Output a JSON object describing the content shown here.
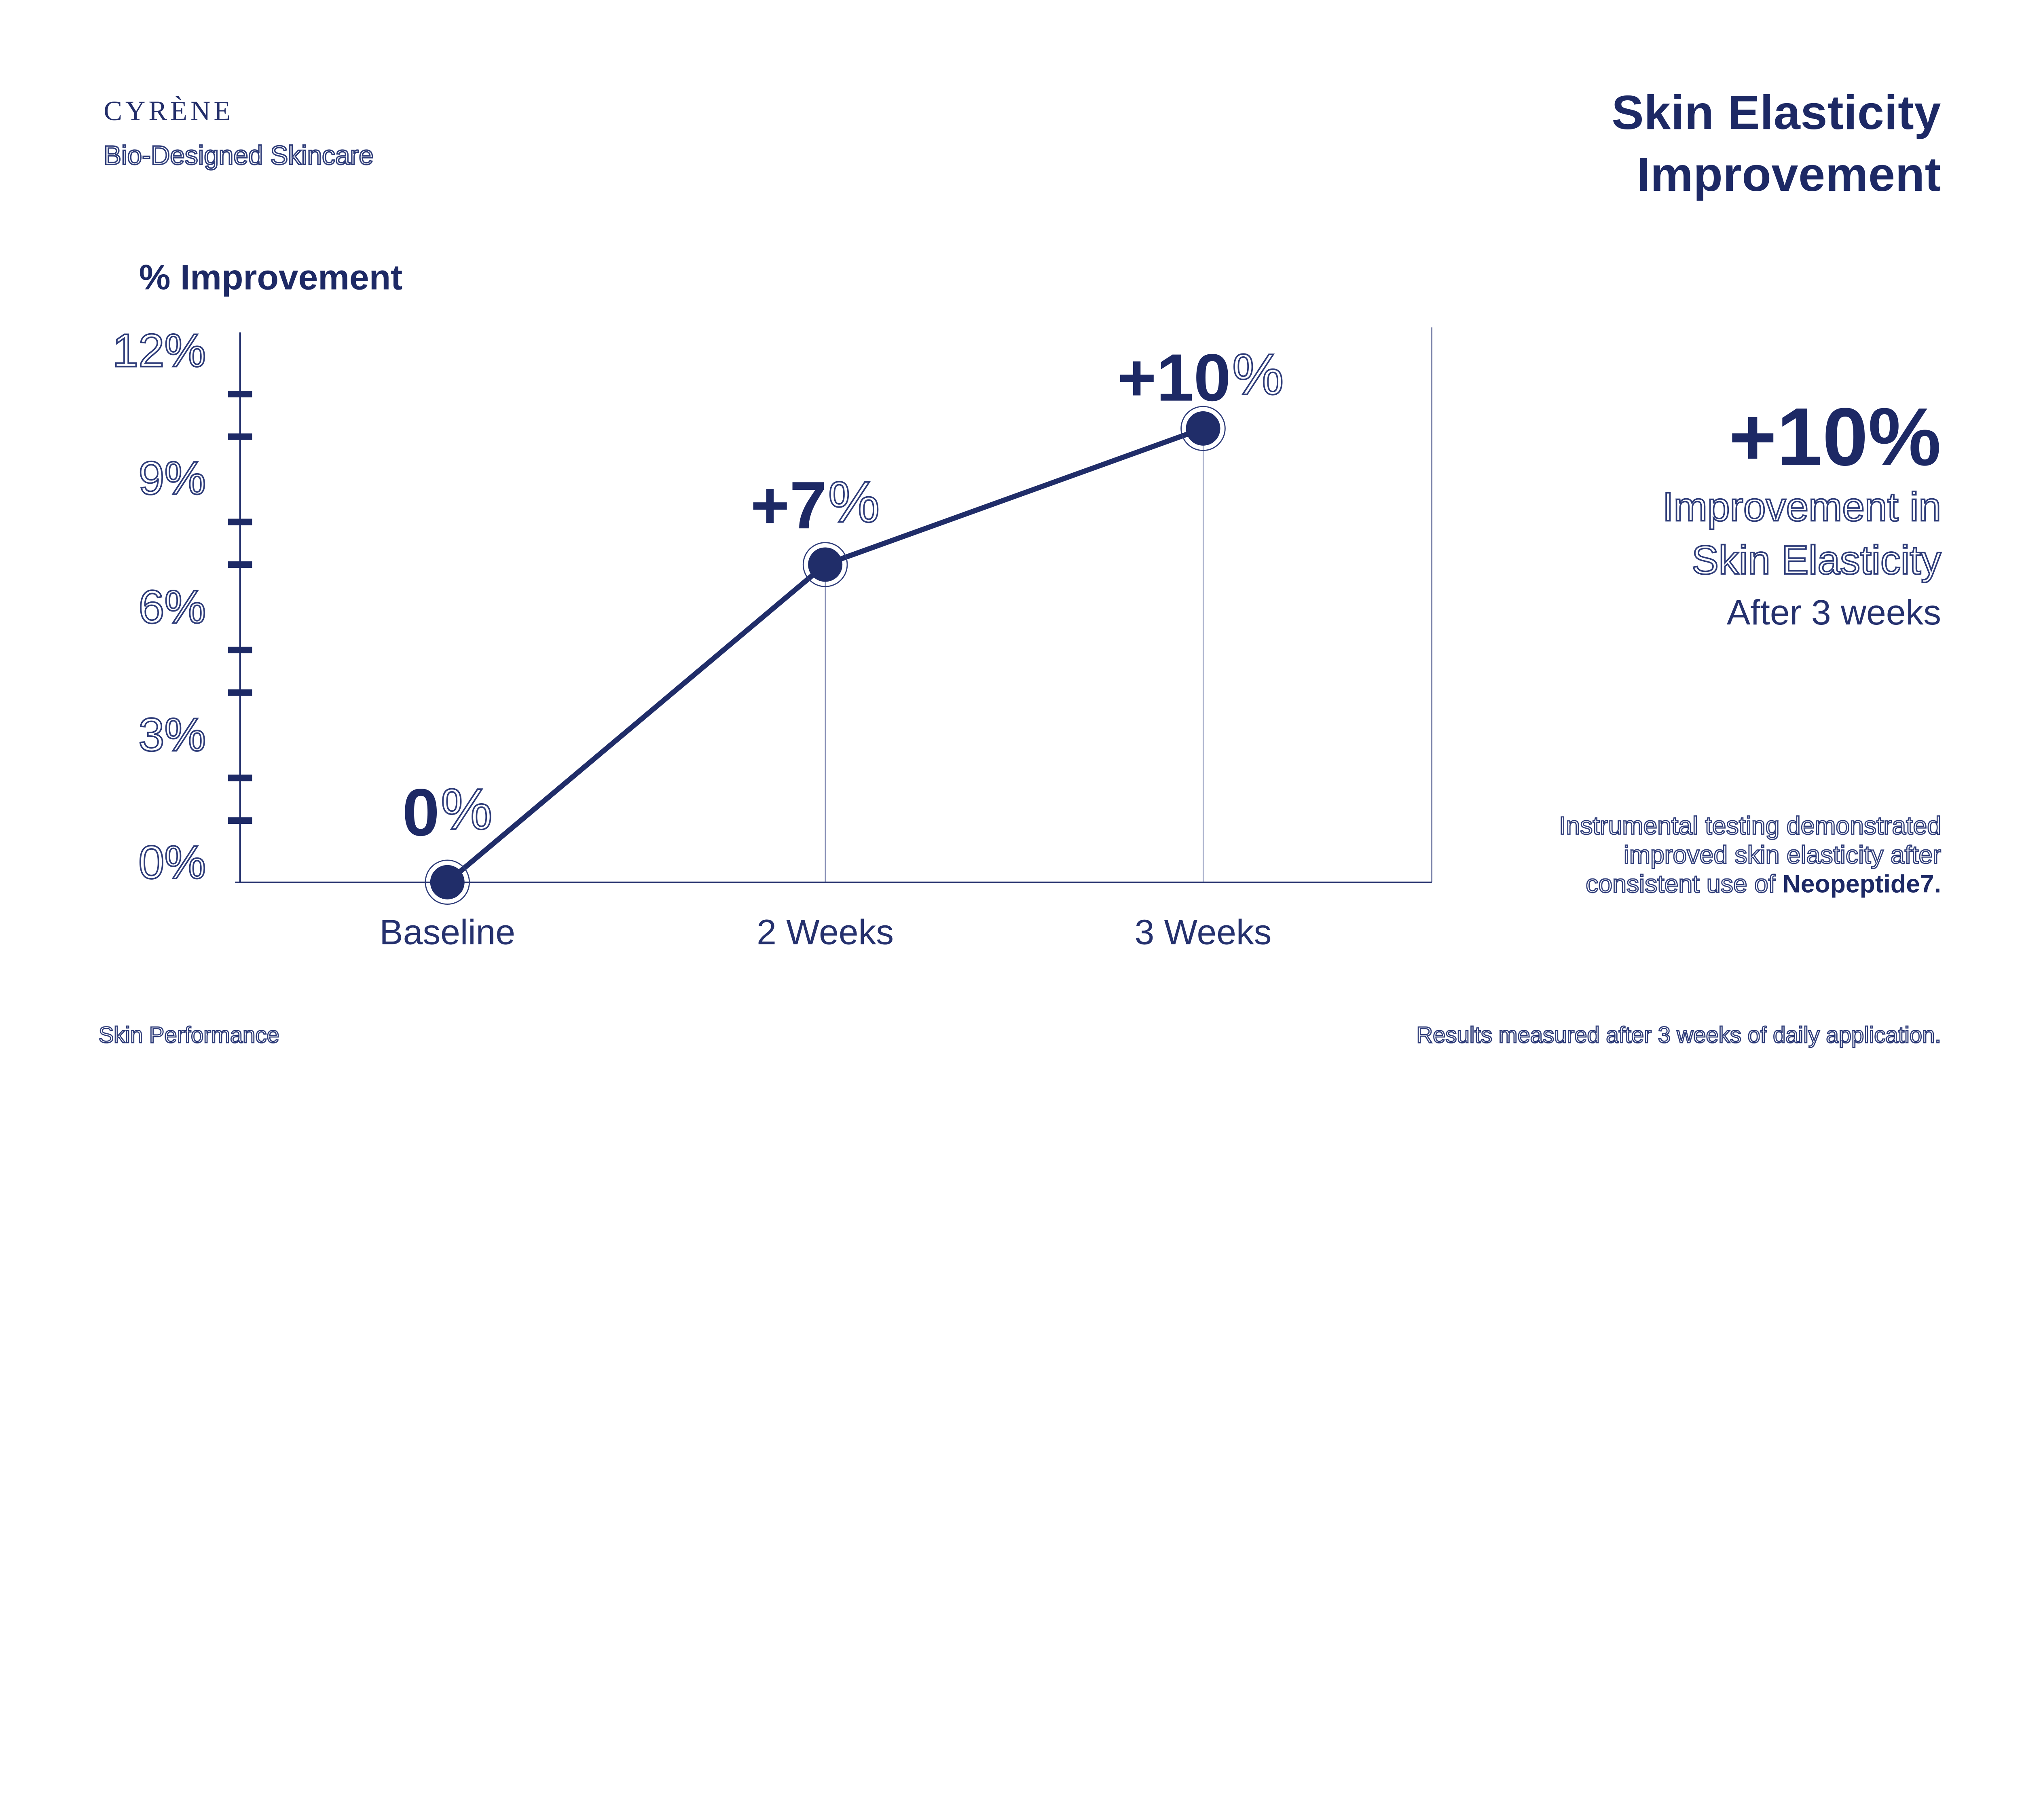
{
  "brand": {
    "logo": "CYRÈNE",
    "tagline": "Bio-Designed Skincare"
  },
  "header": {
    "title": [
      "Skin Elasticity",
      "Improvement"
    ]
  },
  "chart_data": {
    "type": "line",
    "title": "% Improvement",
    "categories": [
      "Baseline",
      "2 Weeks",
      "3 Weeks"
    ],
    "values": [
      0,
      7,
      10
    ],
    "point_labels": [
      {
        "num": "0",
        "suffix": "%"
      },
      {
        "num": "+7",
        "suffix": "%"
      },
      {
        "num": "+10",
        "suffix": "%"
      }
    ],
    "ylabel": "% Improvement",
    "xlabel": "",
    "ylim": [
      0,
      12
    ],
    "ytick_values": [
      0,
      3,
      6,
      9,
      12
    ],
    "ytick_labels": [
      "0%",
      "3%",
      "6%",
      "9%",
      "12%"
    ],
    "minor_tick_values": [
      1,
      2,
      4,
      5,
      7,
      8,
      10,
      11
    ],
    "grid": false,
    "legend_position": "none",
    "marker": "filled-circle-with-outer-ring",
    "drop_lines": true,
    "line_color": "#202d69"
  },
  "highlight": {
    "headline": "+10%",
    "sub": [
      "Improvement in",
      "Skin Elasticity"
    ],
    "caption": "After 3 weeks"
  },
  "footnote": {
    "lines": [
      "Instrumental testing demonstrated",
      "improved skin elasticity after"
    ],
    "last_line_prefix": "consistent use of ",
    "last_line_emphasis": "Neopeptide7."
  },
  "footer": {
    "left": "Skin Performance",
    "right": "Results measured after 3 weeks of daily application."
  },
  "colors": {
    "navy": "#1d2965",
    "ink": "#25316e",
    "hairline": "#2e3c79",
    "axis": "#1f2c6a",
    "tick": "#1d2a66",
    "line": "#202d69",
    "drop_line": "#475590",
    "background": "#ffffff"
  }
}
